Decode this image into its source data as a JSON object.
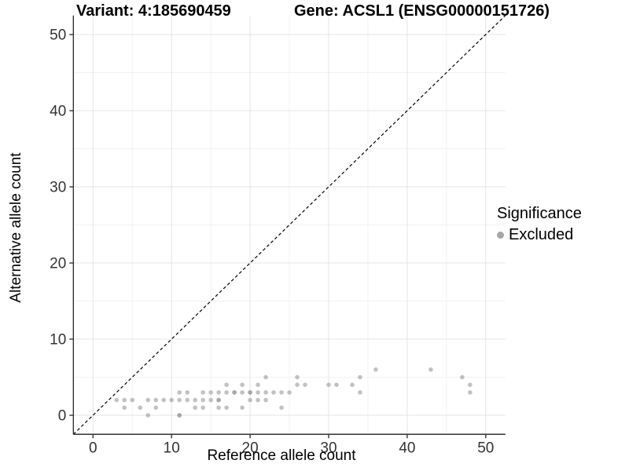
{
  "titles": {
    "variant": "Variant: 4:185690459",
    "gene": "Gene: ACSL1 (ENSG00000151726)"
  },
  "axes": {
    "x_label": "Reference allele count",
    "y_label": "Alternative allele count"
  },
  "legend": {
    "title": "Significance",
    "items": [
      {
        "label": "Excluded",
        "color": "#a6a6a6"
      }
    ]
  },
  "colors": {
    "point": "#8f8f8f",
    "point_opacity": 0.55,
    "grid_major": "#e4e4e4",
    "grid_minor": "#f2f2f2",
    "axis": "#333333",
    "tick_text": "#333333",
    "dashed_line": "#000000",
    "background": "#ffffff",
    "legend_dot": "#a6a6a6"
  },
  "chart_data": {
    "type": "scatter",
    "title_left": "Variant: 4:185690459",
    "title_right": "Gene: ACSL1 (ENSG00000151726)",
    "xlabel": "Reference allele count",
    "ylabel": "Alternative allele count",
    "xlim": [
      0,
      50
    ],
    "ylim": [
      0,
      50
    ],
    "x_range": [
      -2.5,
      52.5
    ],
    "y_range": [
      -2.5,
      52.5
    ],
    "x_ticks": [
      0,
      10,
      20,
      30,
      40,
      50
    ],
    "y_ticks": [
      0,
      10,
      20,
      30,
      40,
      50
    ],
    "x_minor": [
      5,
      15,
      25,
      35,
      45
    ],
    "y_minor": [
      5,
      15,
      25,
      35,
      45
    ],
    "grid": "on",
    "legend_position": "right",
    "identity_line": {
      "style": "dashed",
      "from": [
        -2.5,
        -2.5
      ],
      "to": [
        52.5,
        52.5
      ]
    },
    "series": [
      {
        "name": "Excluded",
        "points": [
          [
            3,
            2
          ],
          [
            4,
            1
          ],
          [
            4,
            2
          ],
          [
            5,
            2
          ],
          [
            6,
            1
          ],
          [
            7,
            0
          ],
          [
            7,
            2
          ],
          [
            8,
            1
          ],
          [
            8,
            2
          ],
          [
            9,
            2
          ],
          [
            10,
            2
          ],
          [
            11,
            0
          ],
          [
            11,
            2
          ],
          [
            11,
            3
          ],
          [
            12,
            2
          ],
          [
            12,
            3
          ],
          [
            13,
            1
          ],
          [
            13,
            2
          ],
          [
            14,
            1
          ],
          [
            14,
            2
          ],
          [
            14,
            3
          ],
          [
            15,
            2
          ],
          [
            15,
            3
          ],
          [
            16,
            1
          ],
          [
            16,
            2
          ],
          [
            16,
            3
          ],
          [
            17,
            1
          ],
          [
            17,
            3
          ],
          [
            17,
            4
          ],
          [
            18,
            3
          ],
          [
            19,
            1
          ],
          [
            19,
            3
          ],
          [
            19,
            4
          ],
          [
            20,
            2
          ],
          [
            20,
            3
          ],
          [
            21,
            2
          ],
          [
            21,
            3
          ],
          [
            21,
            4
          ],
          [
            22,
            2
          ],
          [
            22,
            3
          ],
          [
            22,
            5
          ],
          [
            23,
            3
          ],
          [
            24,
            1
          ],
          [
            24,
            3
          ],
          [
            25,
            3
          ],
          [
            26,
            4
          ],
          [
            26,
            5
          ],
          [
            27,
            4
          ],
          [
            30,
            4
          ],
          [
            31,
            4
          ],
          [
            33,
            4
          ],
          [
            34,
            3
          ],
          [
            34,
            5
          ],
          [
            36,
            6
          ],
          [
            43,
            6
          ],
          [
            47,
            5
          ],
          [
            48,
            3
          ],
          [
            48,
            4
          ]
        ]
      }
    ],
    "overplotted_points": [
      [
        11,
        0
      ],
      [
        16,
        2
      ],
      [
        18,
        3
      ],
      [
        20,
        3
      ]
    ]
  }
}
